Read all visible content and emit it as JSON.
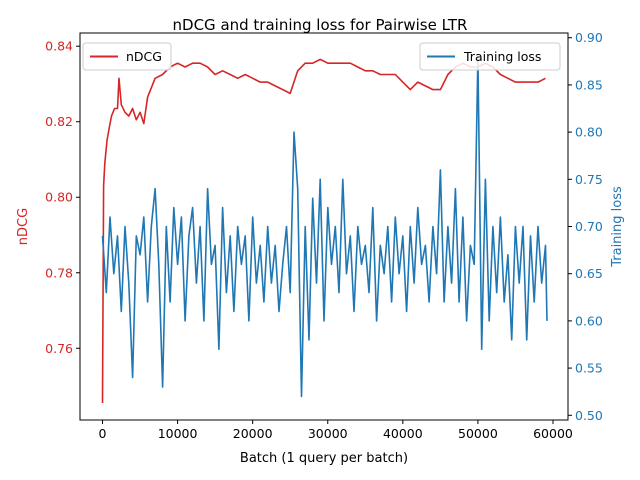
{
  "chart_data": {
    "type": "line",
    "title": "nDCG and training loss for Pairwise LTR",
    "xlabel": "Batch (1 query per batch)",
    "ylabel_left": "nDCG",
    "ylabel_right": "Training loss",
    "xlim": [
      -3000,
      62000
    ],
    "ylim_left": [
      0.741,
      0.8435
    ],
    "ylim_right": [
      0.495,
      0.905
    ],
    "x_ticks": [
      0,
      10000,
      20000,
      30000,
      40000,
      50000,
      60000
    ],
    "y_ticks_left": [
      0.76,
      0.78,
      0.8,
      0.82,
      0.84
    ],
    "y_ticks_right": [
      0.5,
      0.55,
      0.6,
      0.65,
      0.7,
      0.75,
      0.8,
      0.85,
      0.9
    ],
    "grid": false,
    "colors": {
      "ndcg": "#d62728",
      "loss": "#1f77b4"
    },
    "legend_left": {
      "placement": "upper-left",
      "label": "nDCG"
    },
    "legend_right": {
      "placement": "upper-right",
      "label": "Training loss"
    },
    "series": [
      {
        "name": "nDCG",
        "axis": "left",
        "x": [
          0,
          150,
          300,
          600,
          900,
          1200,
          1600,
          2000,
          2200,
          2500,
          3000,
          3500,
          4000,
          4500,
          5000,
          5500,
          6000,
          7000,
          8000,
          9000,
          10000,
          11000,
          12000,
          13000,
          14000,
          15000,
          16000,
          17000,
          18000,
          19000,
          20000,
          21000,
          22000,
          23000,
          24000,
          25000,
          26000,
          27000,
          28000,
          29000,
          30000,
          31000,
          32000,
          33000,
          34000,
          35000,
          36000,
          37000,
          38000,
          39000,
          40000,
          41000,
          42000,
          43000,
          44000,
          45000,
          46000,
          47000,
          48000,
          49000,
          50000,
          51000,
          52000,
          53000,
          54000,
          55000,
          56000,
          57000,
          58000,
          59000
        ],
        "values": [
          0.7455,
          0.803,
          0.809,
          0.815,
          0.8185,
          0.8215,
          0.8235,
          0.8235,
          0.8315,
          0.8245,
          0.8225,
          0.8215,
          0.8235,
          0.8205,
          0.8225,
          0.8195,
          0.8265,
          0.8315,
          0.8325,
          0.8345,
          0.8355,
          0.8345,
          0.8355,
          0.8355,
          0.8345,
          0.8325,
          0.8335,
          0.8325,
          0.8315,
          0.8325,
          0.8315,
          0.8305,
          0.8305,
          0.8295,
          0.8285,
          0.8275,
          0.8335,
          0.8355,
          0.8355,
          0.8365,
          0.8355,
          0.8355,
          0.8355,
          0.8355,
          0.8345,
          0.8335,
          0.8335,
          0.8325,
          0.8325,
          0.8325,
          0.8305,
          0.8285,
          0.8305,
          0.8295,
          0.8285,
          0.8285,
          0.8325,
          0.8345,
          0.8355,
          0.8345,
          0.8345,
          0.8355,
          0.8345,
          0.8325,
          0.8315,
          0.8305,
          0.8305,
          0.8305,
          0.8305,
          0.8315
        ]
      },
      {
        "name": "Training loss",
        "axis": "right",
        "x": [
          0,
          500,
          1000,
          1500,
          2000,
          2500,
          3000,
          3500,
          4000,
          4500,
          5000,
          5500,
          6000,
          6500,
          7000,
          7500,
          8000,
          8500,
          9000,
          9500,
          10000,
          10500,
          11000,
          11500,
          12000,
          12500,
          13000,
          13500,
          14000,
          14500,
          15000,
          15500,
          16000,
          16500,
          17000,
          17500,
          18000,
          18500,
          19000,
          19500,
          20000,
          20500,
          21000,
          21500,
          22000,
          22500,
          23000,
          23500,
          24000,
          24500,
          25000,
          25500,
          26000,
          26500,
          27000,
          27500,
          28000,
          28500,
          29000,
          29500,
          30000,
          30500,
          31000,
          31500,
          32000,
          32500,
          33000,
          33500,
          34000,
          34500,
          35000,
          35500,
          36000,
          36500,
          37000,
          37500,
          38000,
          38500,
          39000,
          39500,
          40000,
          40500,
          41000,
          41500,
          42000,
          42500,
          43000,
          43500,
          44000,
          44500,
          45000,
          45500,
          46000,
          46500,
          47000,
          47500,
          48000,
          48500,
          49000,
          49500,
          50000,
          50500,
          51000,
          51500,
          52000,
          52500,
          53000,
          53500,
          54000,
          54500,
          55000,
          55500,
          56000,
          56500,
          57000,
          57500,
          58000,
          58500,
          59000,
          59200
        ],
        "values": [
          0.69,
          0.63,
          0.71,
          0.65,
          0.69,
          0.61,
          0.7,
          0.64,
          0.54,
          0.69,
          0.67,
          0.71,
          0.62,
          0.7,
          0.74,
          0.66,
          0.53,
          0.7,
          0.62,
          0.72,
          0.66,
          0.71,
          0.6,
          0.69,
          0.72,
          0.64,
          0.7,
          0.6,
          0.74,
          0.66,
          0.68,
          0.57,
          0.72,
          0.63,
          0.69,
          0.61,
          0.7,
          0.66,
          0.69,
          0.6,
          0.71,
          0.64,
          0.68,
          0.62,
          0.7,
          0.64,
          0.68,
          0.61,
          0.66,
          0.7,
          0.63,
          0.8,
          0.74,
          0.52,
          0.7,
          0.58,
          0.73,
          0.64,
          0.75,
          0.6,
          0.72,
          0.66,
          0.7,
          0.63,
          0.75,
          0.65,
          0.69,
          0.61,
          0.7,
          0.66,
          0.68,
          0.63,
          0.72,
          0.6,
          0.68,
          0.65,
          0.7,
          0.62,
          0.71,
          0.65,
          0.69,
          0.61,
          0.7,
          0.64,
          0.72,
          0.66,
          0.68,
          0.62,
          0.7,
          0.65,
          0.76,
          0.62,
          0.7,
          0.64,
          0.74,
          0.62,
          0.71,
          0.6,
          0.68,
          0.66,
          0.88,
          0.57,
          0.75,
          0.6,
          0.7,
          0.63,
          0.71,
          0.62,
          0.67,
          0.58,
          0.7,
          0.64,
          0.7,
          0.58,
          0.69,
          0.62,
          0.7,
          0.64,
          0.68,
          0.6
        ]
      }
    ]
  }
}
